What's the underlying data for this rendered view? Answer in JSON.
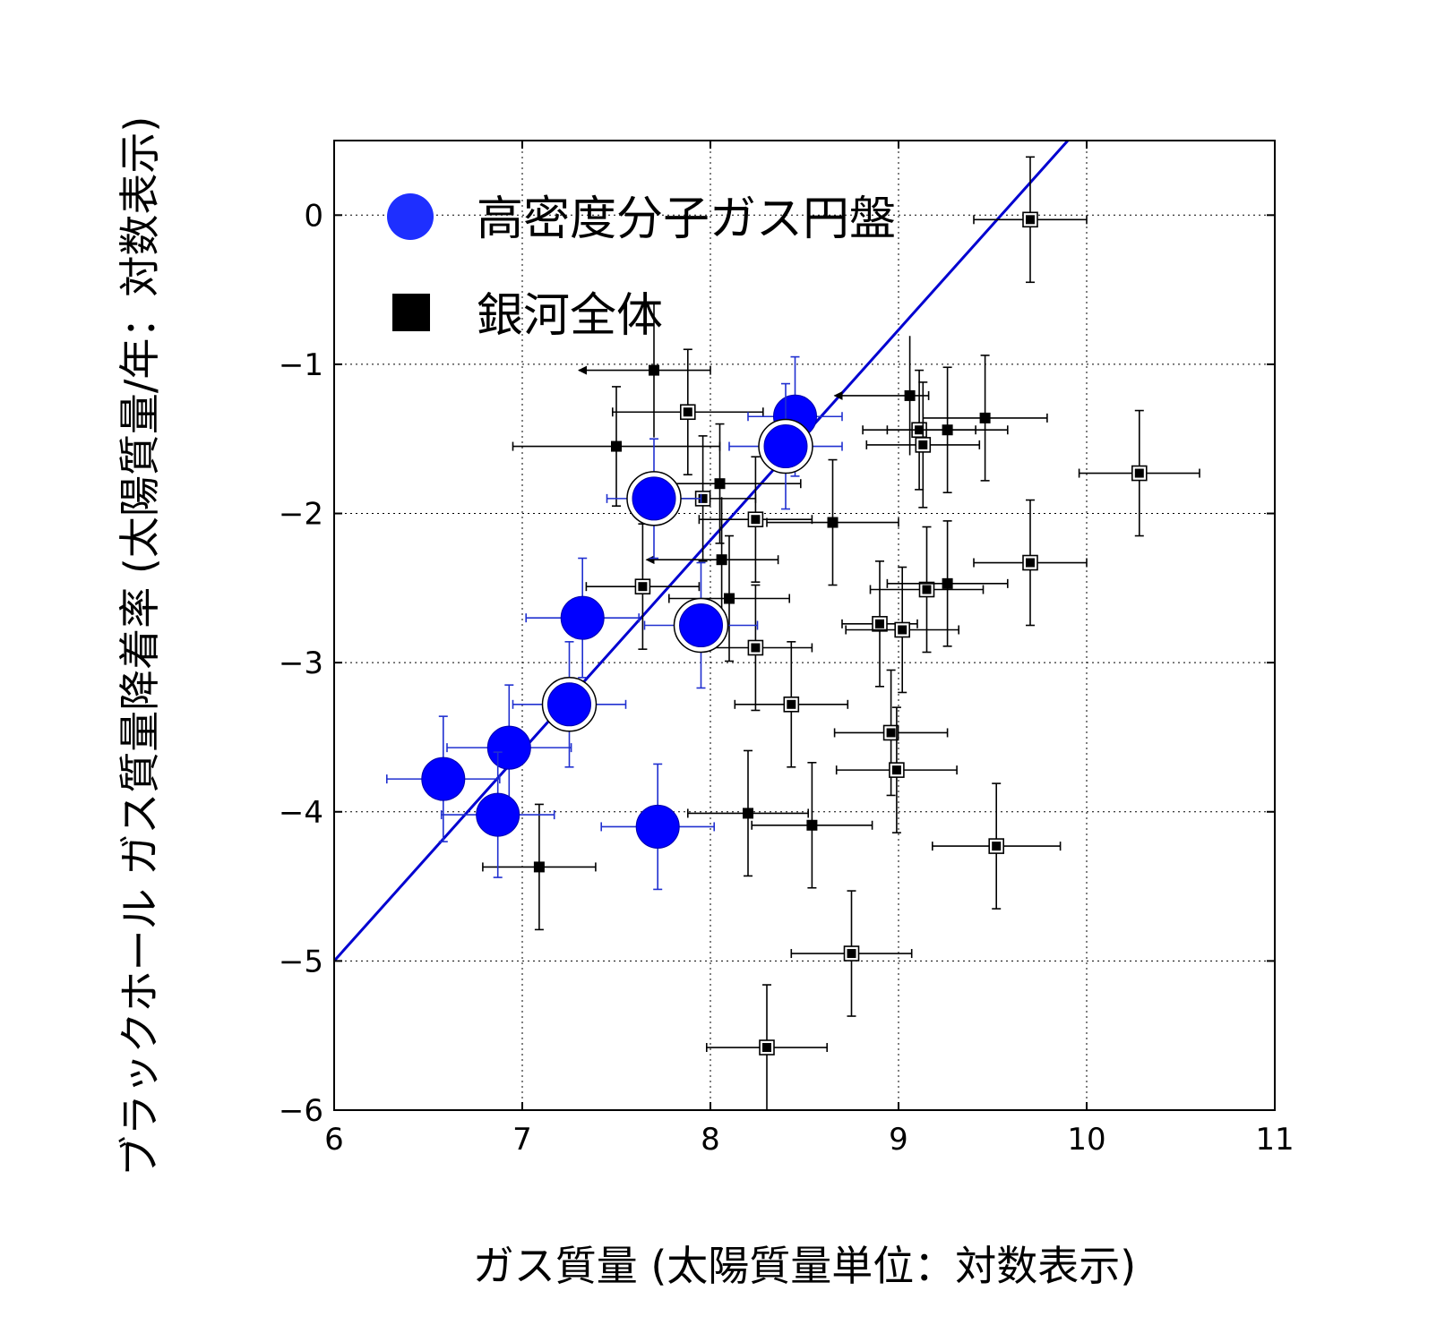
{
  "chart_data": {
    "type": "scatter",
    "xlabel": "ガス質量 (太陽質量単位：対数表示)",
    "ylabel": "ブラックホール ガス質量降着率 (太陽質量/年：対数表示)",
    "xlim": [
      6,
      11
    ],
    "ylim": [
      -6,
      0.5
    ],
    "xticks": [
      "6",
      "7",
      "8",
      "9",
      "10",
      "11"
    ],
    "yticks": [
      "0",
      "−1",
      "−2",
      "−3",
      "−4",
      "−5",
      "−6"
    ],
    "grid": true,
    "legend_position": "top-left",
    "legend": [
      {
        "label": "高密度分子ガス円盤",
        "marker": "circle",
        "color": "#0000ff"
      },
      {
        "label": "銀河全体",
        "marker": "square",
        "color": "#000000"
      }
    ],
    "fit_line": {
      "x": [
        6,
        9.9
      ],
      "y": [
        -5.0,
        0.5
      ],
      "color": "#0000d0"
    },
    "series": [
      {
        "marker": "circle",
        "color": "#0000ff",
        "errorbar_color": "#2030d0",
        "points": [
          {
            "x": 8.45,
            "y": -1.35,
            "xerr": 0.25,
            "yerr": 0.4,
            "ring": false
          },
          {
            "x": 8.4,
            "y": -1.55,
            "xerr": 0.3,
            "yerr": 0.42,
            "ring": true
          },
          {
            "x": 7.7,
            "y": -1.9,
            "xerr": 0.25,
            "yerr": 0.4,
            "ring": true
          },
          {
            "x": 7.32,
            "y": -2.7,
            "xerr": 0.3,
            "yerr": 0.4,
            "ring": false
          },
          {
            "x": 7.95,
            "y": -2.75,
            "xerr": 0.3,
            "yerr": 0.42,
            "ring": true
          },
          {
            "x": 7.25,
            "y": -3.28,
            "xerr": 0.3,
            "yerr": 0.42,
            "ring": true
          },
          {
            "x": 6.93,
            "y": -3.57,
            "xerr": 0.33,
            "yerr": 0.42,
            "ring": false
          },
          {
            "x": 6.58,
            "y": -3.78,
            "xerr": 0.3,
            "yerr": 0.42,
            "ring": false
          },
          {
            "x": 6.87,
            "y": -4.02,
            "xerr": 0.3,
            "yerr": 0.42,
            "ring": false
          },
          {
            "x": 7.72,
            "y": -4.1,
            "xerr": 0.3,
            "yerr": 0.42,
            "ring": false
          }
        ]
      },
      {
        "marker": "square",
        "color": "#000000",
        "points": [
          {
            "x": 9.7,
            "y": -0.03,
            "xerr": 0.3,
            "yerr": 0.42,
            "boxed": true
          },
          {
            "x": 7.7,
            "y": -1.04,
            "xerr": 0.3,
            "yerr": 0.45,
            "upper_limit_x": true
          },
          {
            "x": 7.88,
            "y": -1.32,
            "xerr": 0.4,
            "yerr": 0.42,
            "boxed": true
          },
          {
            "x": 7.5,
            "y": -1.55,
            "xerr": 0.55,
            "yerr": 0.4,
            "boxed": false
          },
          {
            "x": 9.06,
            "y": -1.21,
            "xerr": 0.1,
            "yerr": 0.4,
            "upper_limit_x": true
          },
          {
            "x": 9.11,
            "y": -1.44,
            "xerr": 0.3,
            "yerr": 0.4,
            "boxed": true
          },
          {
            "x": 9.13,
            "y": -1.54,
            "xerr": 0.3,
            "yerr": 0.42,
            "boxed": true
          },
          {
            "x": 9.26,
            "y": -1.44,
            "xerr": 0.32,
            "yerr": 0.42,
            "boxed": false
          },
          {
            "x": 9.46,
            "y": -1.36,
            "xerr": 0.33,
            "yerr": 0.42,
            "boxed": false
          },
          {
            "x": 10.28,
            "y": -1.73,
            "xerr": 0.32,
            "yerr": 0.42,
            "boxed": true
          },
          {
            "x": 8.05,
            "y": -1.8,
            "xerr": 0.43,
            "yerr": 0.4,
            "boxed": false
          },
          {
            "x": 7.96,
            "y": -1.9,
            "xerr": 0.28,
            "yerr": 0.42,
            "boxed": true
          },
          {
            "x": 8.24,
            "y": -2.04,
            "xerr": 0.3,
            "yerr": 0.42,
            "boxed": true
          },
          {
            "x": 8.65,
            "y": -2.06,
            "xerr": 0.35,
            "yerr": 0.42,
            "boxed": false
          },
          {
            "x": 8.06,
            "y": -2.31,
            "xerr": 0.3,
            "yerr": 0.42,
            "upper_limit_x": true
          },
          {
            "x": 9.7,
            "y": -2.33,
            "xerr": 0.3,
            "yerr": 0.42,
            "boxed": true
          },
          {
            "x": 7.64,
            "y": -2.49,
            "xerr": 0.3,
            "yerr": 0.42,
            "boxed": true
          },
          {
            "x": 9.15,
            "y": -2.51,
            "xerr": 0.3,
            "yerr": 0.42,
            "boxed": true
          },
          {
            "x": 9.26,
            "y": -2.47,
            "xerr": 0.32,
            "yerr": 0.42,
            "boxed": false
          },
          {
            "x": 8.1,
            "y": -2.57,
            "xerr": 0.32,
            "yerr": 0.42,
            "boxed": false
          },
          {
            "x": 8.9,
            "y": -2.74,
            "xerr": 0.2,
            "yerr": 0.42,
            "boxed": true
          },
          {
            "x": 9.02,
            "y": -2.78,
            "xerr": 0.3,
            "yerr": 0.42,
            "boxed": true
          },
          {
            "x": 8.24,
            "y": -2.9,
            "xerr": 0.3,
            "yerr": 0.42,
            "boxed": true
          },
          {
            "x": 8.43,
            "y": -3.28,
            "xerr": 0.3,
            "yerr": 0.42,
            "boxed": true
          },
          {
            "x": 8.96,
            "y": -3.47,
            "xerr": 0.3,
            "yerr": 0.42,
            "boxed": true
          },
          {
            "x": 8.99,
            "y": -3.72,
            "xerr": 0.32,
            "yerr": 0.42,
            "boxed": true
          },
          {
            "x": 8.2,
            "y": -4.01,
            "xerr": 0.32,
            "yerr": 0.42,
            "boxed": false
          },
          {
            "x": 8.54,
            "y": -4.09,
            "xerr": 0.32,
            "yerr": 0.42,
            "boxed": false
          },
          {
            "x": 9.52,
            "y": -4.23,
            "xerr": 0.34,
            "yerr": 0.42,
            "boxed": true
          },
          {
            "x": 7.09,
            "y": -4.37,
            "xerr": 0.3,
            "yerr": 0.42,
            "boxed": false
          },
          {
            "x": 8.75,
            "y": -4.95,
            "xerr": 0.32,
            "yerr": 0.42,
            "boxed": true
          },
          {
            "x": 8.3,
            "y": -5.58,
            "xerr": 0.32,
            "yerr": 0.42,
            "boxed": true
          }
        ]
      }
    ]
  }
}
